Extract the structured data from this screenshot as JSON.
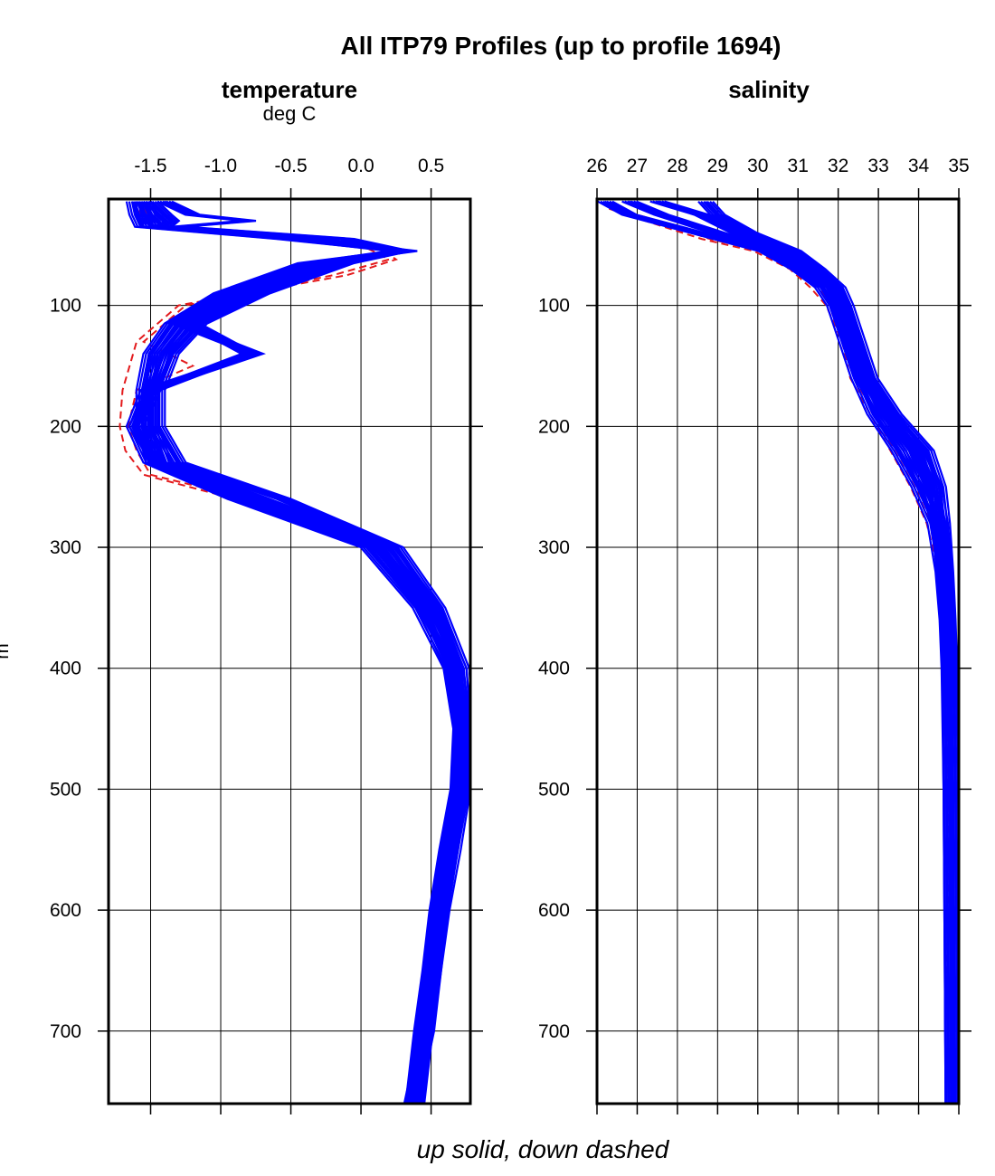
{
  "chart_data": {
    "type": "line",
    "title": "All ITP79 Profiles (up to profile 1694)",
    "footer": "up solid, down dashed",
    "ylabel_fragment": "m",
    "colors": {
      "up": "#0000ff",
      "down": "#e31a1c",
      "frame": "#000000",
      "grid": "#000000"
    },
    "line_styles": {
      "up": "solid",
      "down": "dashed"
    },
    "y_axis": {
      "ticks": [
        100,
        200,
        300,
        400,
        500,
        600,
        700
      ],
      "tick_labels": [
        "100",
        "200",
        "300",
        "400",
        "500",
        "600",
        "700"
      ],
      "range": [
        12,
        760
      ],
      "inverted": true
    },
    "panels": [
      {
        "name": "temperature",
        "title": "temperature",
        "unit": "deg C",
        "x_ticks": [
          -1.5,
          -1.0,
          -0.5,
          0.0,
          0.5
        ],
        "x_tick_labels": [
          "-1.5",
          "-1.0",
          "-0.5",
          "0.0",
          "0.5"
        ],
        "xlim": [
          -1.8,
          0.78
        ],
        "grid": true,
        "up_profiles": [
          {
            "depth": [
              14,
              25,
              30,
              35,
              45,
              55,
              65,
              90,
              115,
              140,
              170,
              200,
              230,
              260,
              300,
              350,
              400,
              450,
              500,
              550,
              600,
              650,
              700,
              760
            ],
            "value": [
              -1.62,
              -1.6,
              -1.58,
              -1.56,
              -0.55,
              0.28,
              -0.4,
              -1.0,
              -1.35,
              -1.5,
              -1.55,
              -1.55,
              -1.48,
              -0.85,
              0.1,
              0.45,
              0.65,
              0.72,
              0.7,
              0.62,
              0.55,
              0.5,
              0.44,
              0.38
            ]
          },
          {
            "depth": [
              14,
              25,
              30,
              35,
              45,
              55,
              65,
              90,
              115,
              140,
              170,
              200,
              230,
              260,
              300,
              350,
              400,
              450,
              500,
              550,
              600,
              650,
              700,
              760
            ],
            "value": [
              -1.55,
              -1.5,
              -1.45,
              -1.42,
              -0.4,
              0.35,
              -0.3,
              -0.85,
              -1.25,
              -1.42,
              -1.5,
              -1.5,
              -1.4,
              -0.7,
              0.2,
              0.52,
              0.7,
              0.74,
              0.72,
              0.64,
              0.57,
              0.52,
              0.46,
              0.4
            ]
          },
          {
            "depth": [
              14,
              25,
              30,
              35,
              45,
              55,
              65,
              90,
              115,
              140,
              170,
              200,
              230,
              260,
              300,
              350,
              400,
              450,
              500,
              550,
              600,
              650,
              700,
              760
            ],
            "value": [
              -1.4,
              -1.2,
              -0.8,
              -1.3,
              -0.1,
              0.3,
              -0.1,
              -0.7,
              -1.15,
              -1.35,
              -1.45,
              -1.45,
              -1.3,
              -0.55,
              0.25,
              0.55,
              0.72,
              0.75,
              0.73,
              0.66,
              0.58,
              0.52,
              0.47,
              0.36
            ]
          },
          {
            "depth": [
              14,
              25,
              30,
              35,
              45,
              55,
              65,
              90,
              115,
              140,
              170,
              200,
              230,
              260,
              300,
              350,
              400,
              450,
              500,
              550,
              600,
              650,
              700,
              760
            ],
            "value": [
              -1.5,
              -1.4,
              -1.35,
              -1.4,
              -0.3,
              0.32,
              -0.2,
              -0.8,
              -1.2,
              -0.8,
              -1.48,
              -1.6,
              -1.45,
              -0.75,
              0.15,
              0.5,
              0.68,
              0.73,
              0.71,
              0.63,
              0.56,
              0.51,
              0.45,
              0.39
            ]
          },
          {
            "depth": [
              14,
              25,
              30,
              35,
              45,
              55,
              65,
              90,
              115,
              140,
              170,
              200,
              230,
              260,
              300,
              350,
              400,
              450,
              500,
              550,
              600,
              650,
              700,
              760
            ],
            "value": [
              -1.58,
              -1.55,
              -1.5,
              -1.5,
              -0.5,
              0.25,
              -0.35,
              -0.95,
              -1.3,
              -0.75,
              -1.52,
              -1.62,
              -1.5,
              -0.9,
              0.05,
              0.42,
              0.64,
              0.71,
              0.69,
              0.61,
              0.54,
              0.49,
              0.43,
              0.37
            ]
          }
        ],
        "down_profiles": [
          {
            "depth": [
              20,
              35,
              50,
              62,
              75,
              100,
              130,
              150,
              170,
              200,
              220,
              240,
              260,
              300,
              350,
              400,
              450,
              500,
              550,
              600,
              650,
              700,
              760
            ],
            "value": [
              -1.6,
              -1.5,
              0.1,
              0.25,
              -0.1,
              -1.3,
              -1.6,
              -1.65,
              -1.7,
              -1.72,
              -1.68,
              -1.55,
              -0.9,
              0.1,
              0.45,
              0.66,
              0.72,
              0.7,
              0.62,
              0.55,
              0.5,
              0.45,
              0.38
            ]
          },
          {
            "depth": [
              20,
              35,
              50,
              62,
              75,
              100,
              130,
              150,
              170,
              200,
              220,
              240,
              260,
              300,
              350,
              400,
              450,
              500,
              550,
              600,
              650,
              700,
              760
            ],
            "value": [
              -1.55,
              -1.45,
              0.0,
              0.2,
              -0.2,
              -1.25,
              -1.55,
              -1.2,
              -1.6,
              -1.66,
              -1.6,
              -1.5,
              -0.8,
              0.15,
              0.48,
              0.68,
              0.73,
              0.71,
              0.63,
              0.56,
              0.51,
              0.46,
              0.39
            ]
          }
        ]
      },
      {
        "name": "salinity",
        "title": "salinity",
        "unit": "",
        "x_ticks": [
          26,
          27,
          28,
          29,
          30,
          31,
          32,
          33,
          34,
          35
        ],
        "x_tick_labels": [
          "26",
          "27",
          "28",
          "29",
          "30",
          "31",
          "32",
          "33",
          "34",
          "35"
        ],
        "xlim": [
          26,
          35
        ],
        "grid": true,
        "up_profiles": [
          {
            "depth": [
              14,
              25,
              40,
              55,
              70,
              85,
              100,
              130,
              160,
              190,
              220,
              250,
              280,
              320,
              360,
              400,
              500,
              600,
              700,
              760
            ],
            "value": [
              26.2,
              26.8,
              28.5,
              30.2,
              31.0,
              31.6,
              31.9,
              32.2,
              32.5,
              32.9,
              33.5,
              34.0,
              34.4,
              34.6,
              34.7,
              34.75,
              34.8,
              34.82,
              34.84,
              34.85
            ]
          },
          {
            "depth": [
              14,
              25,
              40,
              55,
              70,
              85,
              100,
              130,
              160,
              190,
              220,
              250,
              280,
              320,
              360,
              400,
              500,
              600,
              700,
              760
            ],
            "value": [
              27.5,
              28.6,
              29.5,
              30.7,
              31.4,
              31.9,
              32.1,
              32.4,
              32.7,
              33.3,
              34.0,
              34.4,
              34.55,
              34.65,
              34.72,
              34.76,
              34.81,
              34.83,
              34.84,
              34.86
            ]
          },
          {
            "depth": [
              14,
              25,
              40,
              55,
              70,
              85,
              100,
              130,
              160,
              190,
              220,
              250,
              280,
              320,
              360,
              400,
              500,
              600,
              700,
              760
            ],
            "value": [
              28.7,
              29.0,
              29.8,
              30.9,
              31.5,
              32.0,
              32.2,
              32.5,
              32.8,
              33.4,
              34.2,
              34.5,
              34.6,
              34.68,
              34.74,
              34.78,
              34.82,
              34.84,
              34.86,
              34.87
            ]
          },
          {
            "depth": [
              14,
              25,
              40,
              55,
              70,
              85,
              100,
              130,
              160,
              190,
              220,
              250,
              280,
              320,
              360,
              400,
              500,
              600,
              700,
              760
            ],
            "value": [
              26.8,
              27.6,
              29.0,
              30.5,
              31.2,
              31.75,
              32.0,
              32.3,
              32.6,
              33.1,
              33.8,
              34.2,
              34.5,
              34.63,
              34.71,
              34.77,
              34.8,
              34.82,
              34.84,
              34.85
            ]
          }
        ],
        "down_profiles": [
          {
            "depth": [
              20,
              30,
              45,
              55,
              70,
              85,
              100,
              130,
              160,
              190,
              220,
              250,
              280,
              320,
              360,
              380,
              500,
              540,
              620,
              630,
              760
            ],
            "value": [
              26.3,
              27.2,
              28.6,
              29.9,
              30.8,
              31.3,
              31.7,
              32.1,
              32.3,
              32.8,
              33.3,
              33.8,
              34.2,
              34.5,
              34.6,
              34.62,
              34.72,
              34.74,
              34.76,
              34.68,
              34.77
            ]
          },
          {
            "depth": [
              20,
              30,
              45,
              55,
              70,
              85,
              100,
              130,
              160,
              190,
              220,
              250,
              280,
              320,
              360,
              400,
              500,
              600,
              700,
              760
            ],
            "value": [
              26.5,
              27.5,
              28.8,
              30.1,
              31.0,
              31.5,
              31.85,
              32.15,
              32.4,
              32.9,
              33.4,
              33.9,
              34.3,
              34.55,
              34.65,
              34.7,
              34.75,
              34.78,
              34.8,
              34.8
            ]
          }
        ]
      }
    ]
  }
}
